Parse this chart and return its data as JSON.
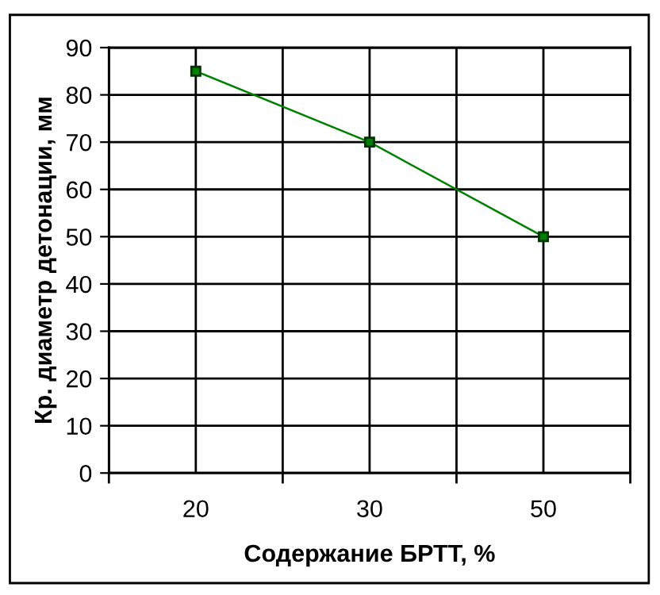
{
  "chart_data": {
    "type": "line",
    "xlabel": "Содержание БРТТ, %",
    "ylabel": "Кр. диаметр детонации, мм",
    "categories": [
      "20",
      "30",
      "50"
    ],
    "series": [
      {
        "color": "#008000",
        "values": [
          85,
          70,
          50
        ]
      }
    ],
    "ylim": [
      0,
      90
    ],
    "yticks": [
      0,
      10,
      20,
      30,
      40,
      50,
      60,
      70,
      80,
      90
    ],
    "grid": true,
    "marker": "square",
    "line_style": "solid",
    "legend": false
  }
}
